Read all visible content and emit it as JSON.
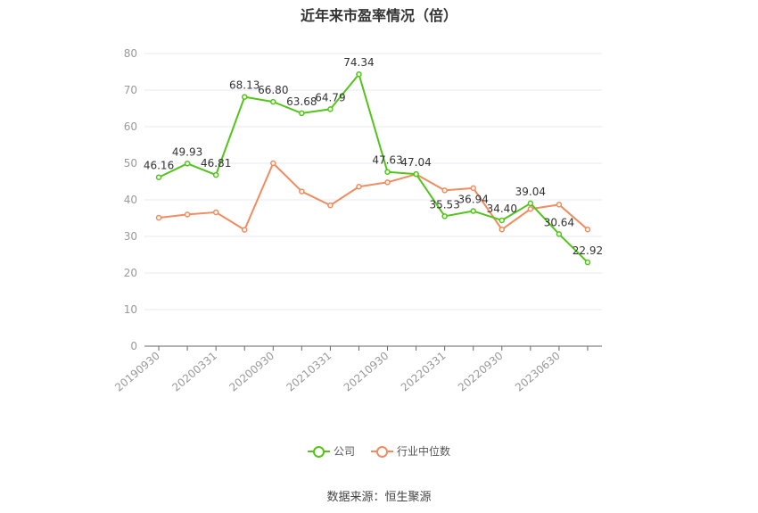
{
  "title": "近年来市盈率情况（倍）",
  "source": "数据来源：恒生聚源",
  "colors": {
    "company": "#52c41a",
    "industry": "#f08c5f",
    "grid": "#e4e8f0",
    "axis": "#666666",
    "label": "#999999"
  },
  "chart_data": {
    "type": "line",
    "title": "近年来市盈率情况（倍）",
    "xlabel": "",
    "ylabel": "",
    "ylim": [
      0,
      80
    ],
    "yticks": [
      0,
      10,
      20,
      30,
      40,
      50,
      60,
      70,
      80
    ],
    "grid": true,
    "legend_position": "bottom",
    "x": [
      "20190930",
      "20191231",
      "20200331",
      "20200630",
      "20200930",
      "20201231",
      "20210331",
      "20210630",
      "20210930",
      "20211231",
      "20220331",
      "20220630",
      "20220930",
      "20221231",
      "20230630",
      "20230930"
    ],
    "x_tick_labels": [
      "20190930",
      "20200331",
      "20200930",
      "20210331",
      "20210930",
      "20220331",
      "20220930",
      "20230630"
    ],
    "series": [
      {
        "name": "公司",
        "values": [
          46.16,
          49.93,
          46.81,
          68.13,
          66.8,
          63.68,
          64.79,
          74.34,
          47.63,
          47.04,
          35.53,
          36.94,
          34.4,
          39.04,
          30.64,
          22.92
        ],
        "labels": [
          "46.16",
          "49.93",
          "46.81",
          "68.13",
          "66.80",
          "63.68",
          "64.79",
          "74.34",
          "47.63",
          "47.04",
          "35.53",
          "36.94",
          "34.40",
          "39.04",
          "30.64",
          "22.92"
        ]
      },
      {
        "name": "行业中位数",
        "values": [
          35.1,
          36.0,
          36.6,
          31.8,
          50.0,
          42.3,
          38.5,
          43.6,
          44.8,
          47.0,
          42.6,
          43.2,
          31.9,
          37.5,
          38.7,
          31.9
        ]
      }
    ]
  }
}
